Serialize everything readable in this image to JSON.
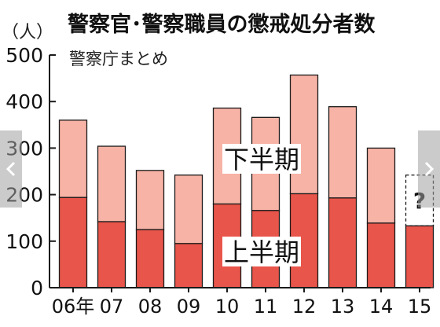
{
  "chart_data": {
    "type": "bar",
    "stacked": true,
    "title": "警察官･警察職員の懲戒処分者数",
    "subtitle": "警察庁まとめ",
    "ylabel": "（人）",
    "ylim": [
      0,
      500
    ],
    "yticks": [
      "0",
      "100",
      "200",
      "300",
      "400",
      "500"
    ],
    "grid": false,
    "categories": [
      "06年",
      "07",
      "08",
      "09",
      "10",
      "11",
      "12",
      "13",
      "14",
      "15"
    ],
    "series": [
      {
        "name": "上半期",
        "color": "#e8554a",
        "values": [
          194,
          142,
          125,
          95,
          180,
          166,
          202,
          193,
          139,
          133
        ]
      },
      {
        "name": "下半期",
        "color": "#f7b3a6",
        "values": [
          166,
          162,
          127,
          147,
          206,
          200,
          255,
          196,
          161,
          null
        ]
      }
    ],
    "annotations": [
      {
        "text": "?",
        "category": "15",
        "note_series": "下半期"
      }
    ]
  },
  "colors": {
    "lower": "#e8554a",
    "upper": "#f7b3a6",
    "outline": "#1a1a1a",
    "nav_overlay": "#a0a0a0"
  },
  "nav": {
    "prev_icon": "chevron-left-icon",
    "next_icon": "chevron-right-icon"
  }
}
